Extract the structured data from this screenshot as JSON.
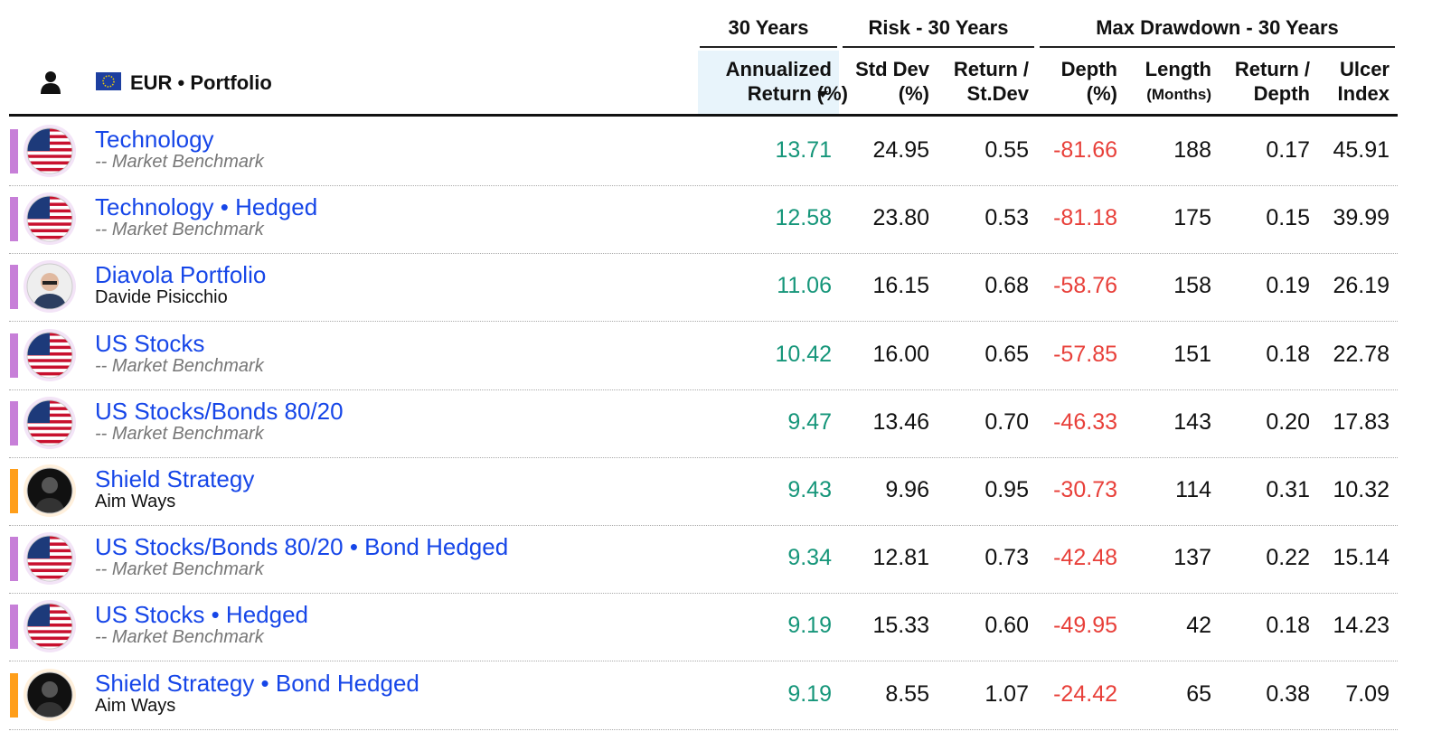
{
  "groups": [
    {
      "label": "30 Years",
      "from": 0,
      "to": 0
    },
    {
      "label": "Risk - 30 Years",
      "from": 1,
      "to": 2
    },
    {
      "label": "Max Drawdown - 30 Years",
      "from": 3,
      "to": 6
    }
  ],
  "name_header": "EUR • Portfolio",
  "columns": [
    {
      "lines": [
        "Annualized",
        "Return (%)"
      ],
      "color": "#16967a",
      "sorted": true
    },
    {
      "lines": [
        "Std Dev",
        "(%)"
      ],
      "color": "#111111"
    },
    {
      "lines": [
        "Return /",
        "St.Dev"
      ],
      "color": "#111111"
    },
    {
      "lines": [
        "Depth",
        "(%)"
      ],
      "color": "#e8403a"
    },
    {
      "lines": [
        "Length",
        "(Months)"
      ],
      "color": "#111111"
    },
    {
      "lines": [
        "Return /",
        "Depth"
      ],
      "color": "#111111"
    },
    {
      "lines": [
        "Ulcer",
        "Index"
      ],
      "color": "#111111"
    }
  ],
  "rows": [
    {
      "name": "Technology",
      "subtitle": "-- Market Benchmark",
      "avatar": "flag",
      "bar_color": "#c77fd8",
      "values": [
        "13.71",
        "24.95",
        "0.55",
        "-81.66",
        "188",
        "0.17",
        "45.91"
      ]
    },
    {
      "name": "Technology • Hedged",
      "subtitle": "-- Market Benchmark",
      "avatar": "flag",
      "bar_color": "#c77fd8",
      "values": [
        "12.58",
        "23.80",
        "0.53",
        "-81.18",
        "175",
        "0.15",
        "39.99"
      ]
    },
    {
      "name": "Diavola Portfolio",
      "subtitle": "Davide Pisicchio",
      "avatar": "photo",
      "bar_color": "#c77fd8",
      "values": [
        "11.06",
        "16.15",
        "0.68",
        "-58.76",
        "158",
        "0.19",
        "26.19"
      ]
    },
    {
      "name": "US Stocks",
      "subtitle": "-- Market Benchmark",
      "avatar": "flag",
      "bar_color": "#c77fd8",
      "values": [
        "10.42",
        "16.00",
        "0.65",
        "-57.85",
        "151",
        "0.18",
        "22.78"
      ]
    },
    {
      "name": "US Stocks/Bonds 80/20",
      "subtitle": "-- Market Benchmark",
      "avatar": "flag",
      "bar_color": "#c77fd8",
      "values": [
        "9.47",
        "13.46",
        "0.70",
        "-46.33",
        "143",
        "0.20",
        "17.83"
      ]
    },
    {
      "name": "Shield Strategy",
      "subtitle": "Aim Ways",
      "avatar": "dark",
      "bar_color": "#ff9e1a",
      "values": [
        "9.43",
        "9.96",
        "0.95",
        "-30.73",
        "114",
        "0.31",
        "10.32"
      ]
    },
    {
      "name": "US Stocks/Bonds 80/20 • Bond Hedged",
      "subtitle": "-- Market Benchmark",
      "avatar": "flag",
      "bar_color": "#c77fd8",
      "values": [
        "9.34",
        "12.81",
        "0.73",
        "-42.48",
        "137",
        "0.22",
        "15.14"
      ]
    },
    {
      "name": "US Stocks • Hedged",
      "subtitle": "-- Market Benchmark",
      "avatar": "flag",
      "bar_color": "#c77fd8",
      "values": [
        "9.19",
        "15.33",
        "0.60",
        "-49.95",
        "42",
        "0.18",
        "14.23"
      ]
    },
    {
      "name": "Shield Strategy • Bond Hedged",
      "subtitle": "Aim Ways",
      "avatar": "dark",
      "bar_color": "#ff9e1a",
      "values": [
        "9.19",
        "8.55",
        "1.07",
        "-24.42",
        "65",
        "0.38",
        "7.09"
      ]
    }
  ]
}
